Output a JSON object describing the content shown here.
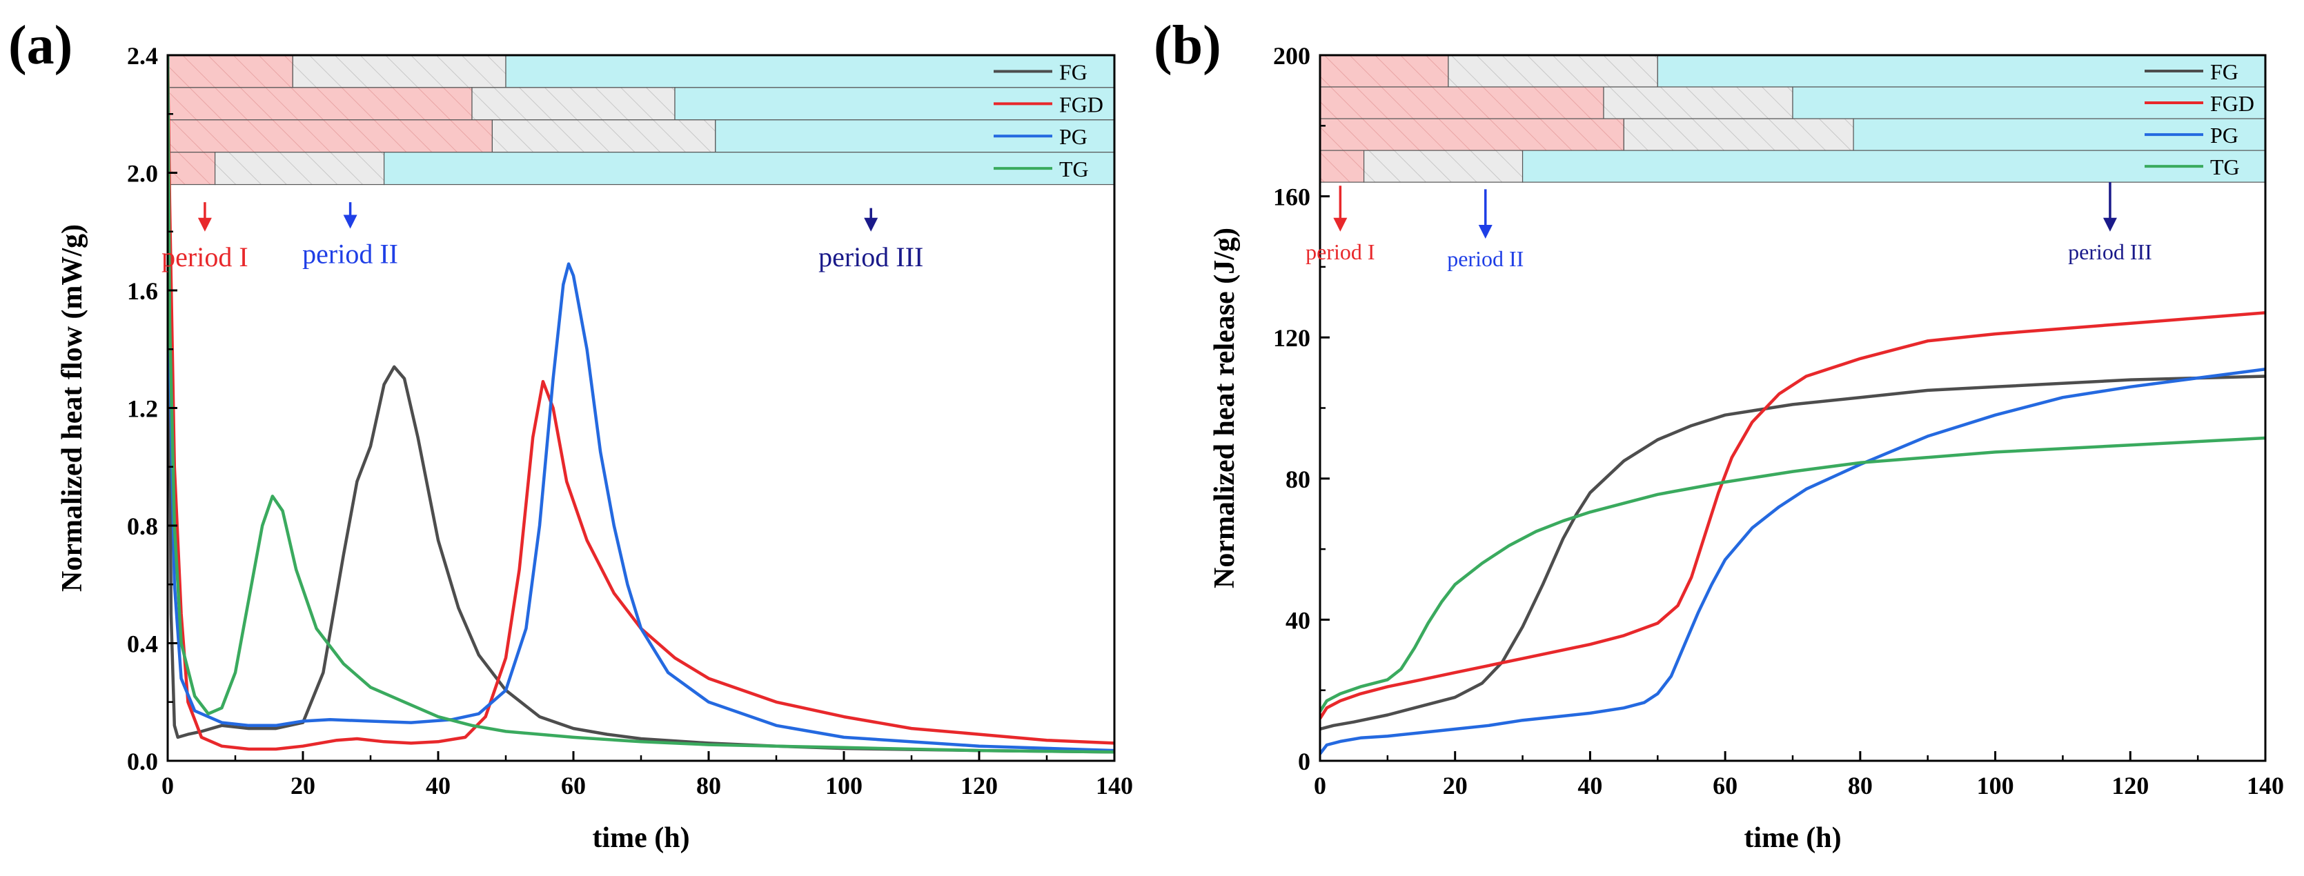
{
  "chart_data": [
    {
      "panel_label": "(a)",
      "type": "line",
      "xlabel": "time (h)",
      "ylabel": "Normalized heat flow (mW/g)",
      "xlim": [
        0,
        140
      ],
      "ylim": [
        0,
        2.4
      ],
      "xticks": [
        0,
        20,
        40,
        60,
        80,
        100,
        120,
        140
      ],
      "yticks": [
        0.0,
        0.4,
        0.8,
        1.2,
        1.6,
        2.0,
        2.4
      ],
      "ytick_labels": [
        "0.0",
        "0.4",
        "0.8",
        "1.2",
        "1.6",
        "2.0",
        "2.4"
      ],
      "grid": false,
      "legend_position": "top-right",
      "period_bands": {
        "y_range": [
          1.96,
          2.4
        ],
        "order_top_to_bottom": [
          "FG",
          "FGD",
          "PG",
          "TG"
        ],
        "rows": [
          {
            "name": "FG",
            "period_I_end": 18.5,
            "period_II_end": 50
          },
          {
            "name": "FGD",
            "period_I_end": 45,
            "period_II_end": 75
          },
          {
            "name": "PG",
            "period_I_end": 48,
            "period_II_end": 81
          },
          {
            "name": "TG",
            "period_I_end": 7,
            "period_II_end": 32
          }
        ],
        "colors": {
          "period_I": "#f9c7c7",
          "period_II": "#ebebeb",
          "period_III": "#bff1f4"
        }
      },
      "annotations": [
        {
          "text": "period I",
          "x": 5.5,
          "arrow_from_y": 1.9,
          "arrow_to_y": 1.8,
          "color": "#e8282b"
        },
        {
          "text": "period II",
          "x": 27,
          "arrow_from_y": 1.9,
          "arrow_to_y": 1.81,
          "color": "#1f3fe6"
        },
        {
          "text": "period III",
          "x": 104,
          "arrow_from_y": 1.88,
          "arrow_to_y": 1.8,
          "color": "#1a1a8a"
        }
      ],
      "series": [
        {
          "name": "FG",
          "color": "#4d4d4d",
          "points": [
            [
              0,
              2.4
            ],
            [
              0.5,
              0.5
            ],
            [
              1,
              0.12
            ],
            [
              1.5,
              0.08
            ],
            [
              3,
              0.09
            ],
            [
              5,
              0.1
            ],
            [
              8,
              0.12
            ],
            [
              12,
              0.11
            ],
            [
              16,
              0.11
            ],
            [
              20,
              0.13
            ],
            [
              23,
              0.3
            ],
            [
              26,
              0.7
            ],
            [
              28,
              0.95
            ],
            [
              30,
              1.07
            ],
            [
              32,
              1.28
            ],
            [
              33.5,
              1.34
            ],
            [
              35,
              1.3
            ],
            [
              37,
              1.1
            ],
            [
              40,
              0.75
            ],
            [
              43,
              0.52
            ],
            [
              46,
              0.36
            ],
            [
              50,
              0.24
            ],
            [
              55,
              0.15
            ],
            [
              60,
              0.11
            ],
            [
              65,
              0.09
            ],
            [
              70,
              0.075
            ],
            [
              80,
              0.06
            ],
            [
              90,
              0.05
            ],
            [
              100,
              0.042
            ],
            [
              120,
              0.035
            ],
            [
              140,
              0.03
            ]
          ]
        },
        {
          "name": "FGD",
          "color": "#e8282b",
          "points": [
            [
              0,
              2.4
            ],
            [
              0.3,
              1.9
            ],
            [
              1,
              1.0
            ],
            [
              2,
              0.5
            ],
            [
              3,
              0.2
            ],
            [
              5,
              0.08
            ],
            [
              8,
              0.05
            ],
            [
              12,
              0.04
            ],
            [
              16,
              0.04
            ],
            [
              20,
              0.05
            ],
            [
              25,
              0.07
            ],
            [
              28,
              0.075
            ],
            [
              32,
              0.065
            ],
            [
              36,
              0.06
            ],
            [
              40,
              0.065
            ],
            [
              44,
              0.08
            ],
            [
              47,
              0.15
            ],
            [
              50,
              0.35
            ],
            [
              52,
              0.65
            ],
            [
              54,
              1.1
            ],
            [
              55.5,
              1.29
            ],
            [
              57,
              1.2
            ],
            [
              59,
              0.95
            ],
            [
              62,
              0.75
            ],
            [
              66,
              0.57
            ],
            [
              70,
              0.45
            ],
            [
              75,
              0.35
            ],
            [
              80,
              0.28
            ],
            [
              90,
              0.2
            ],
            [
              100,
              0.15
            ],
            [
              110,
              0.11
            ],
            [
              120,
              0.09
            ],
            [
              130,
              0.07
            ],
            [
              140,
              0.06
            ]
          ]
        },
        {
          "name": "PG",
          "color": "#2469e0",
          "points": [
            [
              0,
              2.4
            ],
            [
              0.3,
              1.4
            ],
            [
              1,
              0.6
            ],
            [
              2,
              0.28
            ],
            [
              4,
              0.17
            ],
            [
              8,
              0.13
            ],
            [
              12,
              0.12
            ],
            [
              16,
              0.12
            ],
            [
              20,
              0.135
            ],
            [
              24,
              0.14
            ],
            [
              30,
              0.135
            ],
            [
              36,
              0.13
            ],
            [
              42,
              0.14
            ],
            [
              46,
              0.16
            ],
            [
              50,
              0.24
            ],
            [
              53,
              0.45
            ],
            [
              55,
              0.8
            ],
            [
              57,
              1.3
            ],
            [
              58.5,
              1.62
            ],
            [
              59.3,
              1.69
            ],
            [
              60,
              1.65
            ],
            [
              62,
              1.4
            ],
            [
              64,
              1.05
            ],
            [
              66,
              0.8
            ],
            [
              68,
              0.6
            ],
            [
              70,
              0.45
            ],
            [
              74,
              0.3
            ],
            [
              80,
              0.2
            ],
            [
              90,
              0.12
            ],
            [
              100,
              0.08
            ],
            [
              120,
              0.05
            ],
            [
              140,
              0.035
            ]
          ]
        },
        {
          "name": "TG",
          "color": "#3aaa5e",
          "points": [
            [
              0,
              2.4
            ],
            [
              0.3,
              1.5
            ],
            [
              1,
              0.8
            ],
            [
              2,
              0.4
            ],
            [
              4,
              0.22
            ],
            [
              6,
              0.16
            ],
            [
              8,
              0.18
            ],
            [
              10,
              0.3
            ],
            [
              12,
              0.55
            ],
            [
              14,
              0.8
            ],
            [
              15.5,
              0.9
            ],
            [
              17,
              0.85
            ],
            [
              19,
              0.65
            ],
            [
              22,
              0.45
            ],
            [
              26,
              0.33
            ],
            [
              30,
              0.25
            ],
            [
              35,
              0.2
            ],
            [
              40,
              0.15
            ],
            [
              45,
              0.12
            ],
            [
              50,
              0.1
            ],
            [
              60,
              0.08
            ],
            [
              70,
              0.065
            ],
            [
              80,
              0.055
            ],
            [
              100,
              0.045
            ],
            [
              120,
              0.035
            ],
            [
              140,
              0.03
            ]
          ]
        }
      ]
    },
    {
      "panel_label": "(b)",
      "type": "line",
      "xlabel": "time (h)",
      "ylabel": "Normalized heat release (J/g)",
      "xlim": [
        0,
        140
      ],
      "ylim": [
        0,
        200
      ],
      "xticks": [
        0,
        20,
        40,
        60,
        80,
        100,
        120,
        140
      ],
      "yticks": [
        0,
        40,
        80,
        120,
        160,
        200
      ],
      "ytick_labels": [
        "0",
        "40",
        "80",
        "120",
        "160",
        "200"
      ],
      "grid": false,
      "legend_position": "top-right",
      "period_bands": {
        "y_range": [
          164,
          200
        ],
        "order_top_to_bottom": [
          "FG",
          "FGD",
          "PG",
          "TG"
        ],
        "rows": [
          {
            "name": "FG",
            "period_I_end": 19,
            "period_II_end": 50
          },
          {
            "name": "FGD",
            "period_I_end": 42,
            "period_II_end": 70
          },
          {
            "name": "PG",
            "period_I_end": 45,
            "period_II_end": 79
          },
          {
            "name": "TG",
            "period_I_end": 6.5,
            "period_II_end": 30
          }
        ],
        "colors": {
          "period_I": "#f9c7c7",
          "period_II": "#ebebeb",
          "period_III": "#bff1f4"
        }
      },
      "annotations": [
        {
          "text": "period I",
          "x": 3,
          "arrow_from_y": 163,
          "arrow_to_y": 150,
          "color": "#e8282b"
        },
        {
          "text": "period II",
          "x": 24.5,
          "arrow_from_y": 162,
          "arrow_to_y": 148,
          "color": "#1f3fe6"
        },
        {
          "text": "period III",
          "x": 117,
          "arrow_from_y": 164,
          "arrow_to_y": 150,
          "color": "#1a1a8a"
        }
      ],
      "series": [
        {
          "name": "FG",
          "color": "#4d4d4d",
          "points": [
            [
              0,
              9
            ],
            [
              2,
              10
            ],
            [
              5,
              11
            ],
            [
              10,
              13
            ],
            [
              15,
              15.5
            ],
            [
              20,
              18
            ],
            [
              24,
              22
            ],
            [
              27,
              28
            ],
            [
              30,
              38
            ],
            [
              33,
              50
            ],
            [
              36,
              63
            ],
            [
              38,
              70
            ],
            [
              40,
              76
            ],
            [
              45,
              85
            ],
            [
              50,
              91
            ],
            [
              55,
              95
            ],
            [
              60,
              98
            ],
            [
              70,
              101
            ],
            [
              80,
              103
            ],
            [
              90,
              105
            ],
            [
              100,
              106
            ],
            [
              120,
              108
            ],
            [
              140,
              109
            ]
          ]
        },
        {
          "name": "FGD",
          "color": "#e8282b",
          "points": [
            [
              0,
              12
            ],
            [
              1,
              15
            ],
            [
              3,
              17
            ],
            [
              6,
              19
            ],
            [
              10,
              21
            ],
            [
              15,
              23
            ],
            [
              20,
              25
            ],
            [
              25,
              27
            ],
            [
              30,
              29
            ],
            [
              35,
              31
            ],
            [
              40,
              33
            ],
            [
              45,
              35.5
            ],
            [
              50,
              39
            ],
            [
              53,
              44
            ],
            [
              55,
              52
            ],
            [
              57,
              64
            ],
            [
              59,
              76
            ],
            [
              61,
              86
            ],
            [
              64,
              96
            ],
            [
              68,
              104
            ],
            [
              72,
              109
            ],
            [
              80,
              114
            ],
            [
              90,
              119
            ],
            [
              100,
              121
            ],
            [
              120,
              124
            ],
            [
              140,
              127
            ]
          ]
        },
        {
          "name": "PG",
          "color": "#2469e0",
          "points": [
            [
              0,
              2
            ],
            [
              1,
              4.5
            ],
            [
              3,
              5.5
            ],
            [
              6,
              6.5
            ],
            [
              10,
              7
            ],
            [
              15,
              8
            ],
            [
              20,
              9
            ],
            [
              25,
              10
            ],
            [
              30,
              11.5
            ],
            [
              35,
              12.5
            ],
            [
              40,
              13.5
            ],
            [
              45,
              15
            ],
            [
              48,
              16.5
            ],
            [
              50,
              19
            ],
            [
              52,
              24
            ],
            [
              54,
              33
            ],
            [
              56,
              42
            ],
            [
              58,
              50
            ],
            [
              60,
              57
            ],
            [
              64,
              66
            ],
            [
              68,
              72
            ],
            [
              72,
              77
            ],
            [
              80,
              84
            ],
            [
              90,
              92
            ],
            [
              100,
              98
            ],
            [
              110,
              103
            ],
            [
              120,
              106
            ],
            [
              130,
              108.5
            ],
            [
              140,
              111
            ]
          ]
        },
        {
          "name": "TG",
          "color": "#3aaa5e",
          "points": [
            [
              0,
              14
            ],
            [
              1,
              17
            ],
            [
              3,
              19
            ],
            [
              6,
              21
            ],
            [
              10,
              23
            ],
            [
              12,
              26
            ],
            [
              14,
              32
            ],
            [
              16,
              39
            ],
            [
              18,
              45
            ],
            [
              20,
              50
            ],
            [
              24,
              56
            ],
            [
              28,
              61
            ],
            [
              32,
              65
            ],
            [
              36,
              68
            ],
            [
              40,
              70.5
            ],
            [
              45,
              73
            ],
            [
              50,
              75.5
            ],
            [
              60,
              79
            ],
            [
              70,
              82
            ],
            [
              80,
              84.5
            ],
            [
              90,
              86
            ],
            [
              100,
              87.5
            ],
            [
              120,
              89.5
            ],
            [
              140,
              91.5
            ]
          ]
        }
      ]
    }
  ]
}
